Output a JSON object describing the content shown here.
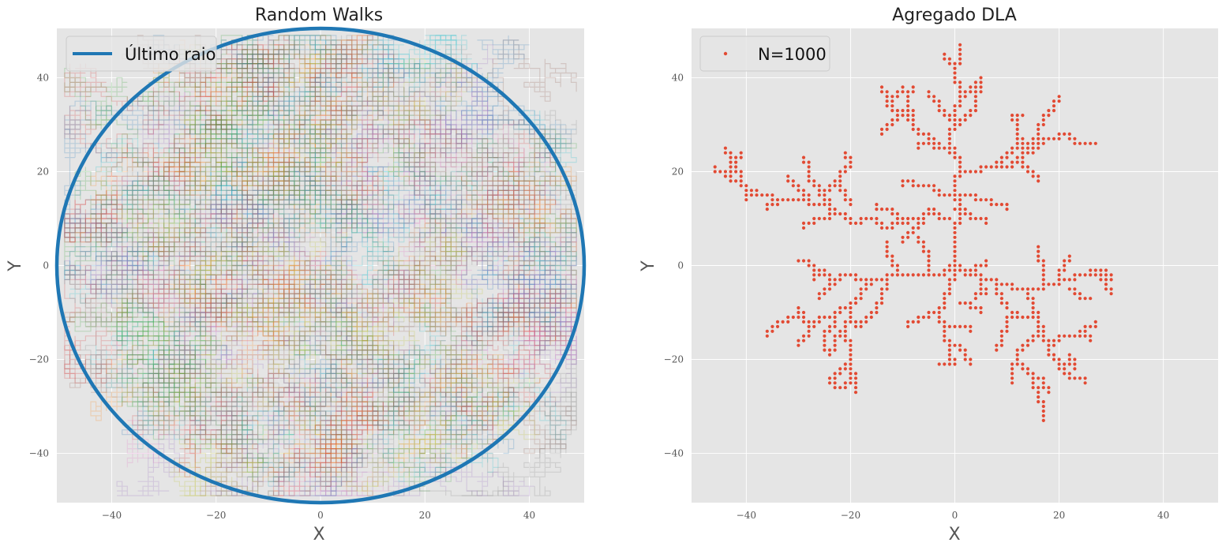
{
  "colors": {
    "panel_bg": "#e5e5e5",
    "grid": "#ffffff",
    "circle": "#1f77b4",
    "aggregate": "#e24a33",
    "walk_palette": [
      "#1f77b4",
      "#ff7f0e",
      "#2ca02c",
      "#d62728",
      "#9467bd",
      "#8c564b",
      "#e377c2",
      "#7f7f7f",
      "#bcbd22",
      "#17becf"
    ]
  },
  "chart_data": [
    {
      "type": "line",
      "title": "Random Walks",
      "xlabel": "X",
      "ylabel": "Y",
      "xlim": [
        -50.5,
        50.5
      ],
      "ylim": [
        -50.5,
        50.5
      ],
      "xticks": [
        -40,
        -20,
        0,
        20,
        40
      ],
      "yticks": [
        -40,
        -20,
        0,
        20,
        40
      ],
      "xtick_labels": [
        "−40",
        "−20",
        "0",
        "20",
        "40"
      ],
      "ytick_labels": [
        "−40",
        "−20",
        "0",
        "20",
        "40"
      ],
      "grid": true,
      "legend": {
        "placement": "top-left",
        "entries": [
          {
            "label": "Último raio",
            "marker": "line"
          }
        ]
      },
      "circle": {
        "center": [
          0,
          0
        ],
        "radius": 50.5
      },
      "walks": {
        "description_style": "dense faint lattice random walks covering the disk",
        "count": 420,
        "steps": 260
      }
    },
    {
      "type": "scatter",
      "title": "Agregado DLA",
      "xlabel": "X",
      "ylabel": "Y",
      "xlim": [
        -50.5,
        50.5
      ],
      "ylim": [
        -50.5,
        50.5
      ],
      "xticks": [
        -40,
        -20,
        0,
        20,
        40
      ],
      "yticks": [
        -40,
        -20,
        0,
        20,
        40
      ],
      "xtick_labels": [
        "−40",
        "−20",
        "0",
        "20",
        "40"
      ],
      "ytick_labels": [
        "−40",
        "−20",
        "0",
        "20",
        "40"
      ],
      "grid": true,
      "legend": {
        "placement": "top-left",
        "entries": [
          {
            "label": "N=1000",
            "marker": "dot"
          }
        ]
      },
      "n_particles": 1000,
      "branches": [
        [
          [
            0,
            0
          ],
          [
            0,
            5
          ],
          [
            1,
            10
          ],
          [
            0,
            15
          ],
          [
            1,
            20
          ],
          [
            -1,
            25
          ],
          [
            0,
            30
          ],
          [
            1,
            35
          ],
          [
            0,
            40
          ],
          [
            1,
            44
          ],
          [
            1,
            47
          ]
        ],
        [
          [
            0,
            40
          ],
          [
            -2,
            45
          ]
        ],
        [
          [
            1,
            35
          ],
          [
            3,
            38
          ],
          [
            5,
            40
          ]
        ],
        [
          [
            1,
            30
          ],
          [
            4,
            34
          ],
          [
            5,
            38
          ]
        ],
        [
          [
            0,
            30
          ],
          [
            -3,
            34
          ],
          [
            -5,
            37
          ]
        ],
        [
          [
            0,
            25
          ],
          [
            -4,
            26
          ],
          [
            -7,
            25
          ]
        ],
        [
          [
            -1,
            25
          ],
          [
            -5,
            28
          ],
          [
            -8,
            30
          ],
          [
            -10,
            33
          ],
          [
            -13,
            35
          ],
          [
            -14,
            38
          ]
        ],
        [
          [
            -8,
            30
          ],
          [
            -9,
            34
          ],
          [
            -10,
            38
          ]
        ],
        [
          [
            -10,
            33
          ],
          [
            -12,
            30
          ],
          [
            -14,
            28
          ]
        ],
        [
          [
            -13,
            35
          ],
          [
            -11,
            37
          ],
          [
            -8,
            38
          ]
        ],
        [
          [
            1,
            20
          ],
          [
            5,
            21
          ],
          [
            8,
            21
          ],
          [
            11,
            22
          ],
          [
            13,
            24
          ]
        ],
        [
          [
            11,
            22
          ],
          [
            14,
            25
          ],
          [
            16,
            28
          ]
        ],
        [
          [
            13,
            24
          ],
          [
            17,
            27
          ],
          [
            20,
            28
          ],
          [
            23,
            26
          ],
          [
            27,
            26
          ]
        ],
        [
          [
            16,
            28
          ],
          [
            17,
            31
          ],
          [
            19,
            34
          ],
          [
            20,
            36
          ]
        ],
        [
          [
            13,
            24
          ],
          [
            12,
            28
          ],
          [
            11,
            32
          ],
          [
            13,
            32
          ]
        ],
        [
          [
            11,
            22
          ],
          [
            14,
            20
          ],
          [
            16,
            18
          ]
        ],
        [
          [
            8,
            21
          ],
          [
            10,
            24
          ],
          [
            12,
            26
          ]
        ],
        [
          [
            0,
            15
          ],
          [
            -4,
            17
          ],
          [
            -8,
            18
          ],
          [
            -10,
            17
          ]
        ],
        [
          [
            0,
            15
          ],
          [
            4,
            14
          ],
          [
            7,
            13
          ],
          [
            10,
            12
          ]
        ],
        [
          [
            0,
            12
          ],
          [
            3,
            10
          ],
          [
            6,
            9
          ]
        ],
        [
          [
            -1,
            10
          ],
          [
            -4,
            12
          ],
          [
            -6,
            10
          ],
          [
            -9,
            9
          ],
          [
            -12,
            8
          ]
        ],
        [
          [
            -9,
            9
          ],
          [
            -12,
            12
          ],
          [
            -15,
            13
          ]
        ],
        [
          [
            -6,
            10
          ],
          [
            -8,
            7
          ],
          [
            -10,
            5
          ]
        ],
        [
          [
            -12,
            8
          ],
          [
            -15,
            10
          ],
          [
            -18,
            9
          ],
          [
            -21,
            11
          ],
          [
            -24,
            10
          ],
          [
            -27,
            9
          ],
          [
            -29,
            8
          ]
        ],
        [
          [
            -21,
            11
          ],
          [
            -24,
            13
          ],
          [
            -28,
            14
          ],
          [
            -31,
            14
          ],
          [
            -34,
            13
          ],
          [
            -36,
            12
          ]
        ],
        [
          [
            -28,
            14
          ],
          [
            -30,
            17
          ],
          [
            -32,
            19
          ]
        ],
        [
          [
            -31,
            14
          ],
          [
            -35,
            15
          ],
          [
            -38,
            16
          ],
          [
            -41,
            18
          ],
          [
            -44,
            20
          ],
          [
            -46,
            21
          ]
        ],
        [
          [
            -38,
            16
          ],
          [
            -40,
            14
          ]
        ],
        [
          [
            -41,
            18
          ],
          [
            -43,
            22
          ],
          [
            -44,
            25
          ]
        ],
        [
          [
            -44,
            20
          ],
          [
            -42,
            22
          ],
          [
            -41,
            24
          ]
        ],
        [
          [
            -24,
            13
          ],
          [
            -26,
            16
          ],
          [
            -28,
            19
          ],
          [
            -29,
            23
          ]
        ],
        [
          [
            -26,
            16
          ],
          [
            -22,
            19
          ],
          [
            -20,
            22
          ],
          [
            -21,
            24
          ]
        ],
        [
          [
            -22,
            19
          ],
          [
            -21,
            15
          ],
          [
            -20,
            13
          ]
        ],
        [
          [
            0,
            0
          ],
          [
            2,
            -2
          ],
          [
            5,
            -3
          ],
          [
            8,
            -4
          ],
          [
            11,
            -5
          ],
          [
            14,
            -5
          ],
          [
            17,
            -4
          ],
          [
            20,
            -3
          ],
          [
            23,
            -2
          ],
          [
            26,
            -1
          ],
          [
            29,
            -2
          ],
          [
            30,
            -6
          ]
        ],
        [
          [
            26,
            -1
          ],
          [
            28,
            -3
          ],
          [
            30,
            -2
          ]
        ],
        [
          [
            17,
            -4
          ],
          [
            17,
            -1
          ],
          [
            16,
            2
          ],
          [
            16,
            4
          ]
        ],
        [
          [
            20,
            -3
          ],
          [
            21,
            0
          ],
          [
            22,
            2
          ]
        ],
        [
          [
            14,
            -5
          ],
          [
            15,
            -8
          ],
          [
            16,
            -11
          ],
          [
            17,
            -14
          ],
          [
            18,
            -17
          ],
          [
            19,
            -20
          ],
          [
            20,
            -21
          ],
          [
            23,
            -22
          ]
        ],
        [
          [
            20,
            -21
          ],
          [
            22,
            -24
          ],
          [
            25,
            -25
          ]
        ],
        [
          [
            23,
            -22
          ],
          [
            22,
            -19
          ]
        ],
        [
          [
            18,
            -17
          ],
          [
            20,
            -15
          ],
          [
            23,
            -15
          ],
          [
            26,
            -16
          ]
        ],
        [
          [
            16,
            -11
          ],
          [
            12,
            -10
          ],
          [
            10,
            -12
          ],
          [
            9,
            -15
          ],
          [
            8,
            -18
          ]
        ],
        [
          [
            17,
            -14
          ],
          [
            14,
            -17
          ],
          [
            12,
            -19
          ],
          [
            11,
            -22
          ],
          [
            11,
            -25
          ]
        ],
        [
          [
            12,
            -19
          ],
          [
            13,
            -22
          ],
          [
            15,
            -24
          ],
          [
            16,
            -27
          ],
          [
            17,
            -30
          ],
          [
            17,
            -33
          ]
        ],
        [
          [
            15,
            -24
          ],
          [
            17,
            -25
          ],
          [
            18,
            -27
          ]
        ],
        [
          [
            23,
            -15
          ],
          [
            25,
            -13
          ],
          [
            27,
            -12
          ]
        ],
        [
          [
            8,
            -4
          ],
          [
            9,
            -7
          ],
          [
            10,
            -9
          ]
        ],
        [
          [
            22,
            -5
          ],
          [
            24,
            -7
          ],
          [
            26,
            -7
          ]
        ],
        [
          [
            0,
            0
          ],
          [
            -2,
            -2
          ],
          [
            -5,
            -2
          ],
          [
            -8,
            -2
          ],
          [
            -11,
            -2
          ],
          [
            -13,
            -3
          ],
          [
            -14,
            -6
          ],
          [
            -15,
            -9
          ],
          [
            -16,
            -11
          ]
        ],
        [
          [
            -11,
            -2
          ],
          [
            -12,
            1
          ],
          [
            -13,
            3
          ],
          [
            -13,
            5
          ]
        ],
        [
          [
            -5,
            -2
          ],
          [
            -5,
            1
          ],
          [
            -6,
            4
          ],
          [
            -7,
            6
          ]
        ],
        [
          [
            -13,
            -3
          ],
          [
            -16,
            -3
          ],
          [
            -19,
            -2
          ],
          [
            -22,
            -3
          ],
          [
            -25,
            -1
          ],
          [
            -28,
            1
          ],
          [
            -30,
            1
          ]
        ],
        [
          [
            -22,
            -3
          ],
          [
            -24,
            -5
          ],
          [
            -26,
            -7
          ]
        ],
        [
          [
            -25,
            -1
          ],
          [
            -27,
            -3
          ]
        ],
        [
          [
            -16,
            -3
          ],
          [
            -18,
            -6
          ],
          [
            -20,
            -9
          ],
          [
            -21,
            -13
          ],
          [
            -20,
            -17
          ],
          [
            -20,
            -21
          ],
          [
            -19,
            -24
          ],
          [
            -19,
            -27
          ]
        ],
        [
          [
            -20,
            -9
          ],
          [
            -23,
            -11
          ],
          [
            -26,
            -12
          ],
          [
            -29,
            -11
          ],
          [
            -30,
            -9
          ]
        ],
        [
          [
            -26,
            -12
          ],
          [
            -28,
            -14
          ],
          [
            -30,
            -17
          ]
        ],
        [
          [
            -29,
            -11
          ],
          [
            -32,
            -12
          ],
          [
            -34,
            -13
          ],
          [
            -36,
            -15
          ]
        ],
        [
          [
            -23,
            -11
          ],
          [
            -25,
            -15
          ],
          [
            -25,
            -18
          ]
        ],
        [
          [
            -21,
            -13
          ],
          [
            -23,
            -16
          ],
          [
            -24,
            -19
          ]
        ],
        [
          [
            -20,
            -21
          ],
          [
            -22,
            -23
          ],
          [
            -24,
            -25
          ]
        ],
        [
          [
            -19,
            -24
          ],
          [
            -21,
            -26
          ],
          [
            -23,
            -25
          ]
        ],
        [
          [
            -16,
            -11
          ],
          [
            -18,
            -13
          ],
          [
            -20,
            -11
          ]
        ],
        [
          [
            0,
            0
          ],
          [
            -1,
            -4
          ],
          [
            -2,
            -7
          ],
          [
            -3,
            -10
          ],
          [
            -5,
            -11
          ],
          [
            -7,
            -12
          ],
          [
            -9,
            -13
          ]
        ],
        [
          [
            -3,
            -10
          ],
          [
            -2,
            -13
          ],
          [
            -1,
            -17
          ],
          [
            0,
            -21
          ],
          [
            -3,
            -21
          ]
        ],
        [
          [
            -1,
            -17
          ],
          [
            2,
            -19
          ],
          [
            3,
            -21
          ]
        ],
        [
          [
            -2,
            -13
          ],
          [
            1,
            -13
          ],
          [
            3,
            -14
          ]
        ],
        [
          [
            1,
            -8
          ],
          [
            3,
            -9
          ],
          [
            5,
            -10
          ]
        ],
        [
          [
            2,
            -2
          ],
          [
            4,
            0
          ],
          [
            6,
            1
          ]
        ],
        [
          [
            5,
            -3
          ],
          [
            6,
            -6
          ],
          [
            4,
            -7
          ]
        ]
      ]
    }
  ]
}
